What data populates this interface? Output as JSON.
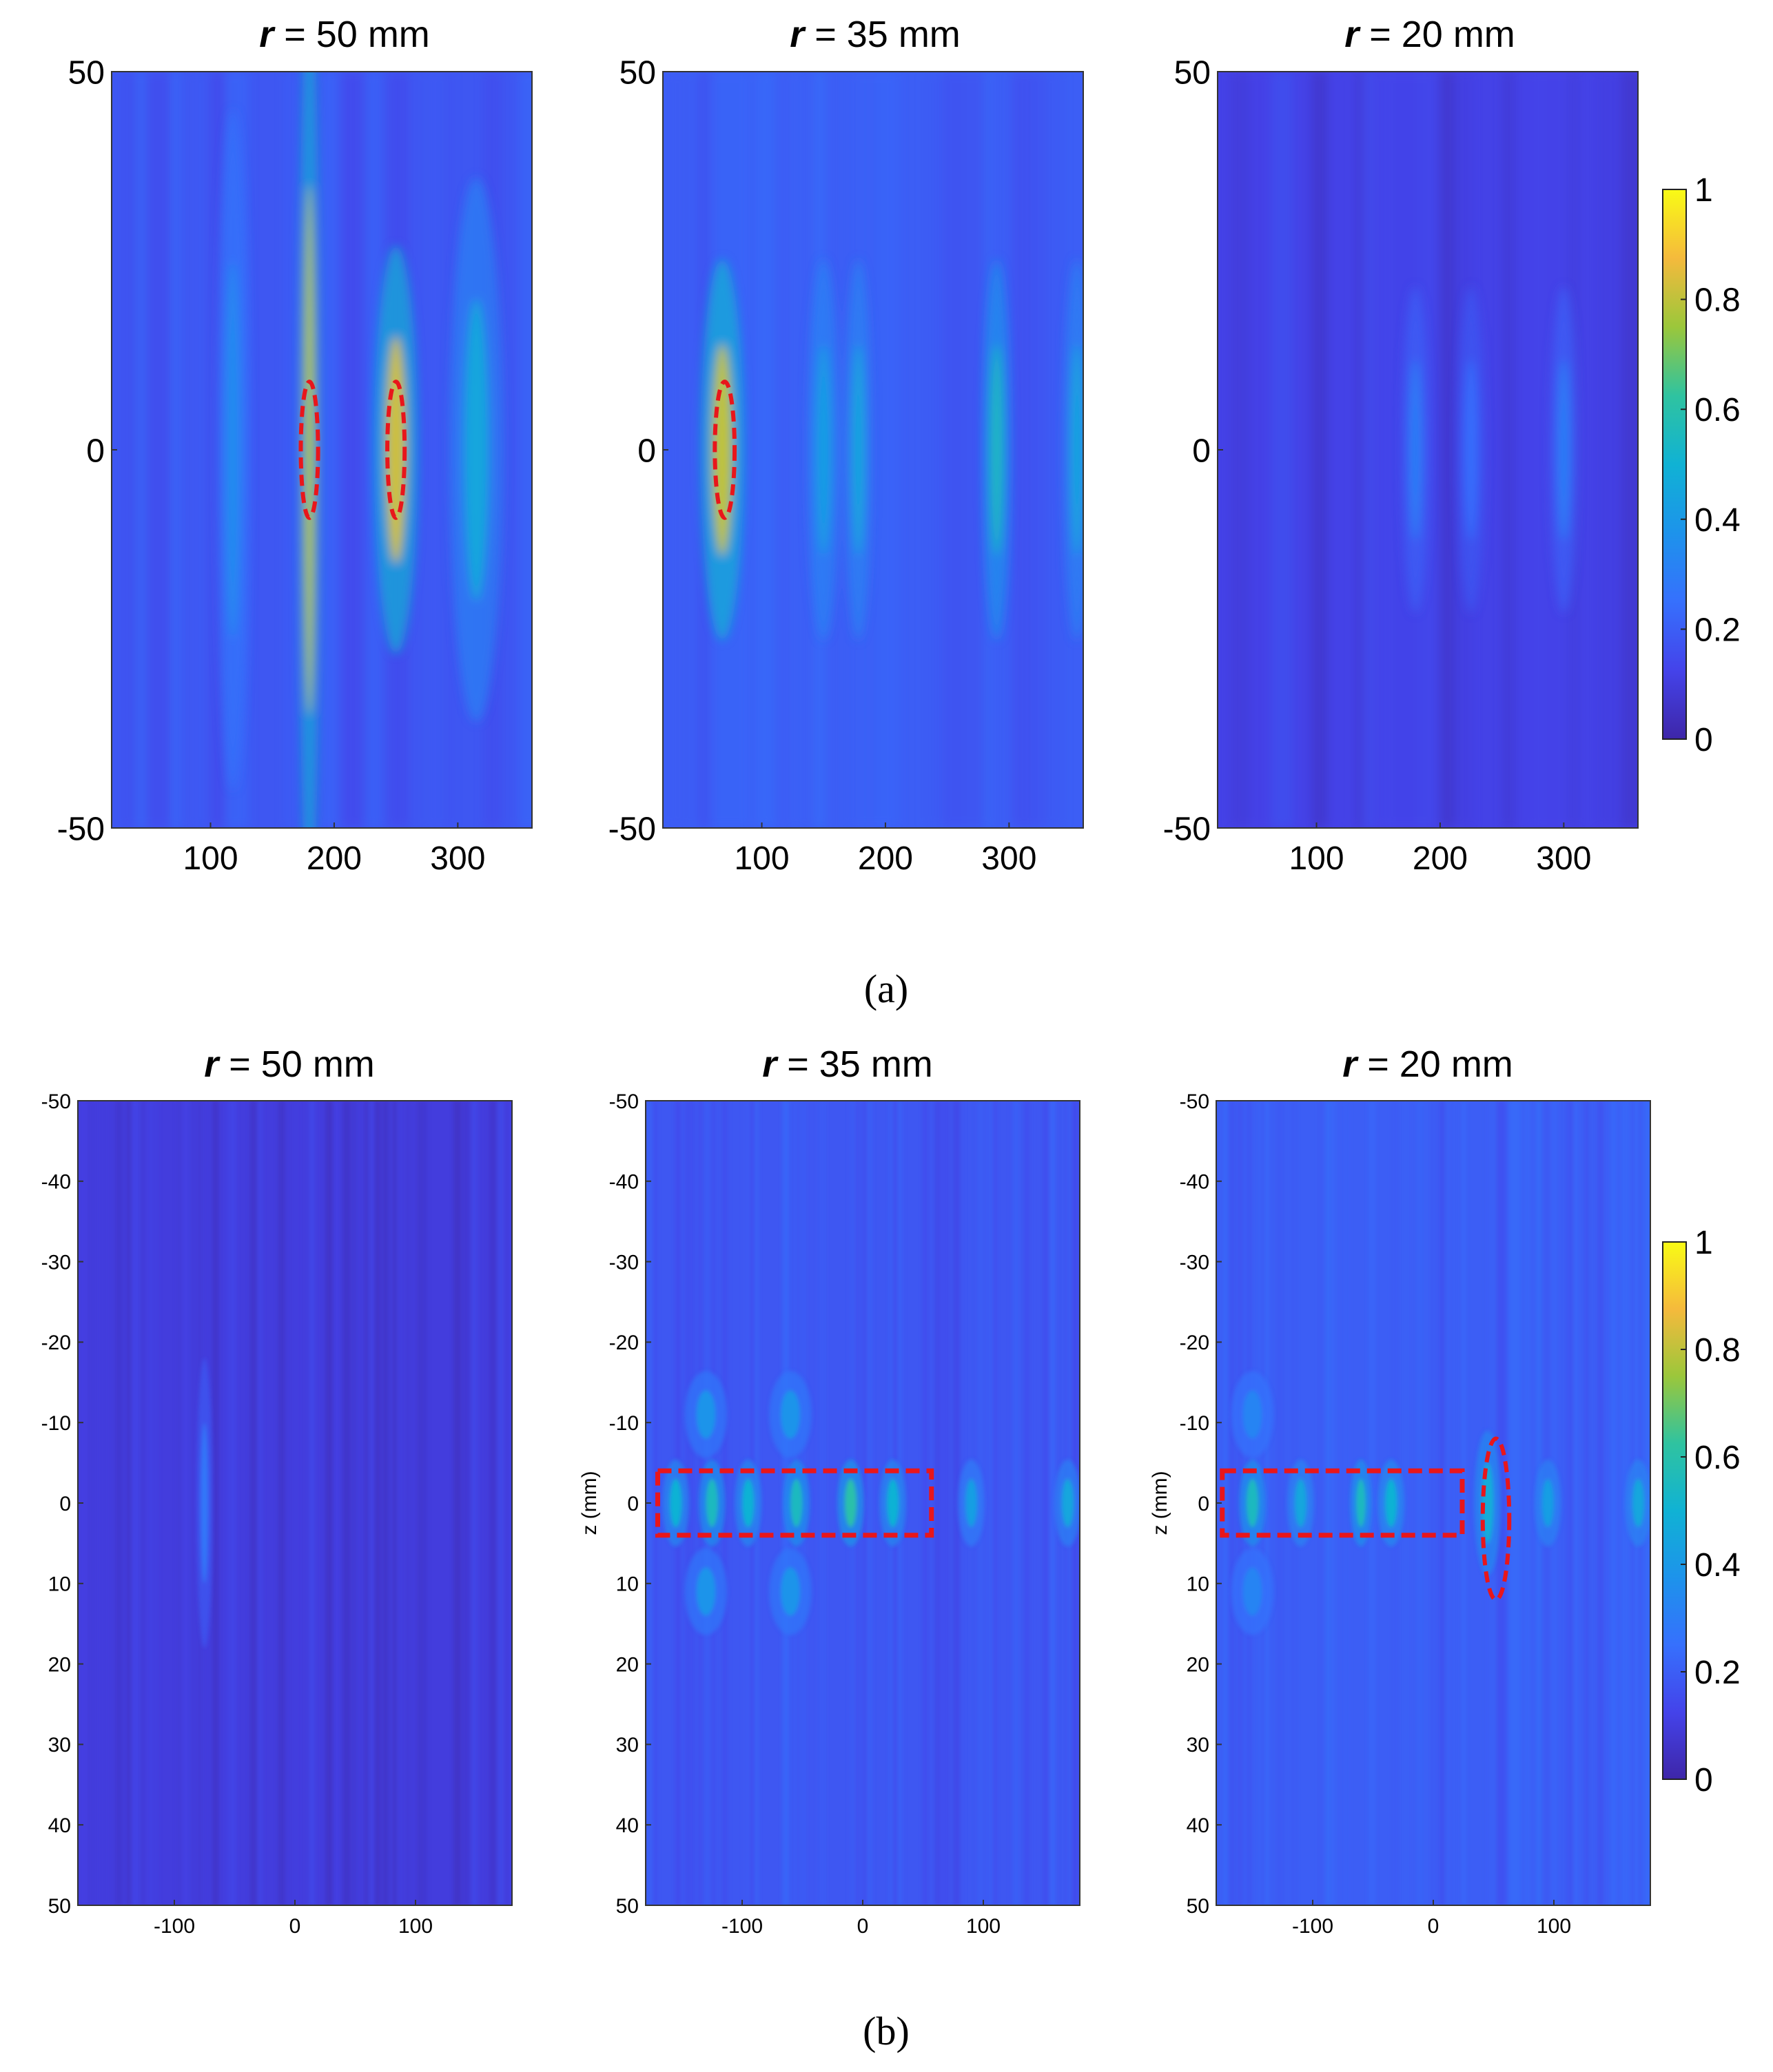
{
  "captions": {
    "a": "(a)",
    "b": "(b)"
  },
  "colors": {
    "annotation": "#e8161b",
    "frame": "#333333"
  },
  "chart_data": [
    {
      "type": "heatmap",
      "panel": "a1",
      "title_var": "r",
      "title_rest": " = 50 mm",
      "xlabel": "",
      "ylabel": "",
      "xlim": [
        20,
        360
      ],
      "ylim": [
        -50,
        50
      ],
      "y_reversed": false,
      "xticks": [
        100,
        200,
        300
      ],
      "yticks": [
        50,
        0,
        -50
      ],
      "xtick_labels": [
        "100",
        "200",
        "300"
      ],
      "ytick_labels": [
        "50",
        "0",
        "-50"
      ],
      "background": 0.18,
      "hotspots": [
        {
          "x": 180,
          "y": 0,
          "rx": 4,
          "ry": 35,
          "v": 0.78
        },
        {
          "x": 250,
          "y": 0,
          "rx": 8,
          "ry": 15,
          "v": 0.82
        },
        {
          "x": 315,
          "y": 0,
          "rx": 10,
          "ry": 20,
          "v": 0.45
        },
        {
          "x": 118,
          "y": 0,
          "rx": 6,
          "ry": 25,
          "v": 0.35
        }
      ],
      "annotations": [
        {
          "shape": "ellipse",
          "cx": 180,
          "cy": 0,
          "rx": 7,
          "ry": 9
        },
        {
          "shape": "ellipse",
          "cx": 250,
          "cy": 0,
          "rx": 7,
          "ry": 9
        }
      ]
    },
    {
      "type": "heatmap",
      "panel": "a2",
      "title_var": "r",
      "title_rest": " = 35 mm",
      "xlabel": "",
      "ylabel": "",
      "xlim": [
        20,
        360
      ],
      "ylim": [
        -50,
        50
      ],
      "y_reversed": false,
      "xticks": [
        100,
        200,
        300
      ],
      "yticks": [
        50,
        0,
        -50
      ],
      "xtick_labels": [
        "100",
        "200",
        "300"
      ],
      "ytick_labels": [
        "50",
        "0",
        "-50"
      ],
      "background": 0.2,
      "hotspots": [
        {
          "x": 68,
          "y": 0,
          "rx": 8,
          "ry": 14,
          "v": 0.8
        },
        {
          "x": 150,
          "y": 0,
          "rx": 6,
          "ry": 14,
          "v": 0.42
        },
        {
          "x": 178,
          "y": 0,
          "rx": 5,
          "ry": 14,
          "v": 0.45
        },
        {
          "x": 290,
          "y": 0,
          "rx": 5,
          "ry": 14,
          "v": 0.55
        },
        {
          "x": 355,
          "y": 0,
          "rx": 5,
          "ry": 14,
          "v": 0.45
        }
      ],
      "annotations": [
        {
          "shape": "ellipse",
          "cx": 70,
          "cy": 0,
          "rx": 8,
          "ry": 9
        }
      ]
    },
    {
      "type": "heatmap",
      "panel": "a3",
      "title_var": "r",
      "title_rest": " = 20 mm",
      "xlabel": "",
      "ylabel": "",
      "xlim": [
        20,
        360
      ],
      "ylim": [
        -50,
        50
      ],
      "y_reversed": false,
      "xticks": [
        100,
        200,
        300
      ],
      "yticks": [
        50,
        0,
        -50
      ],
      "xtick_labels": [
        "100",
        "200",
        "300"
      ],
      "ytick_labels": [
        "50",
        "0",
        "-50"
      ],
      "background": 0.12,
      "hotspots": [
        {
          "x": 180,
          "y": 0,
          "rx": 5,
          "ry": 12,
          "v": 0.3
        },
        {
          "x": 225,
          "y": 0,
          "rx": 5,
          "ry": 12,
          "v": 0.25
        },
        {
          "x": 300,
          "y": 0,
          "rx": 5,
          "ry": 12,
          "v": 0.3
        }
      ],
      "annotations": []
    },
    {
      "type": "heatmap",
      "panel": "b1",
      "title_var": "r",
      "title_rest": " = 50 mm",
      "xlabel": "",
      "ylabel": "",
      "xlim": [
        -180,
        180
      ],
      "ylim": [
        -50,
        50
      ],
      "y_reversed": true,
      "xticks": [
        -100,
        0,
        100
      ],
      "yticks": [
        -50,
        -40,
        -30,
        -20,
        -10,
        0,
        10,
        20,
        30,
        40,
        50
      ],
      "xtick_labels": [
        "-100",
        "0",
        "100"
      ],
      "ytick_labels": [
        "-50",
        "-40",
        "-30",
        "-20",
        "-10",
        "0",
        "10",
        "20",
        "30",
        "40",
        "50"
      ],
      "background": 0.1,
      "hotspots": [
        {
          "x": -75,
          "y": 0,
          "rx": 3,
          "ry": 10,
          "v": 0.28
        }
      ],
      "annotations": []
    },
    {
      "type": "heatmap",
      "panel": "b2",
      "title_var": "r",
      "title_rest": " = 35 mm",
      "xlabel": "",
      "ylabel": "z (mm)",
      "xlim": [
        -180,
        180
      ],
      "ylim": [
        -50,
        50
      ],
      "y_reversed": true,
      "xticks": [
        -100,
        0,
        100
      ],
      "yticks": [
        -50,
        -40,
        -30,
        -20,
        -10,
        0,
        10,
        20,
        30,
        40,
        50
      ],
      "xtick_labels": [
        "-100",
        "0",
        "100"
      ],
      "ytick_labels": [
        "-50",
        "-40",
        "-30",
        "-20",
        "-10",
        "0",
        "10",
        "20",
        "30",
        "40",
        "50"
      ],
      "background": 0.18,
      "hotspots": [
        {
          "x": -155,
          "y": 0,
          "rx": 5,
          "ry": 3,
          "v": 0.5
        },
        {
          "x": -125,
          "y": 0,
          "rx": 5,
          "ry": 3,
          "v": 0.55
        },
        {
          "x": -95,
          "y": 0,
          "rx": 5,
          "ry": 3,
          "v": 0.5
        },
        {
          "x": -55,
          "y": 0,
          "rx": 5,
          "ry": 3,
          "v": 0.55
        },
        {
          "x": -10,
          "y": 0,
          "rx": 5,
          "ry": 3,
          "v": 0.6
        },
        {
          "x": 25,
          "y": 0,
          "rx": 5,
          "ry": 3,
          "v": 0.5
        },
        {
          "x": 90,
          "y": 0,
          "rx": 5,
          "ry": 3,
          "v": 0.42
        },
        {
          "x": 170,
          "y": 0,
          "rx": 5,
          "ry": 3,
          "v": 0.45
        },
        {
          "x": -130,
          "y": -11,
          "rx": 8,
          "ry": 3,
          "v": 0.38
        },
        {
          "x": -60,
          "y": -11,
          "rx": 8,
          "ry": 3,
          "v": 0.38
        },
        {
          "x": -130,
          "y": 11,
          "rx": 8,
          "ry": 3,
          "v": 0.38
        },
        {
          "x": -60,
          "y": 11,
          "rx": 8,
          "ry": 3,
          "v": 0.38
        }
      ],
      "annotations": [
        {
          "shape": "rect",
          "x0": -170,
          "x1": 57,
          "y0": -4,
          "y1": 4
        }
      ]
    },
    {
      "type": "heatmap",
      "panel": "b3",
      "title_var": "r",
      "title_rest": " = 20 mm",
      "xlabel": "",
      "ylabel": "z (mm)",
      "xlim": [
        -180,
        180
      ],
      "ylim": [
        -50,
        50
      ],
      "y_reversed": true,
      "xticks": [
        -100,
        0,
        100
      ],
      "yticks": [
        -50,
        -40,
        -30,
        -20,
        -10,
        0,
        10,
        20,
        30,
        40,
        50
      ],
      "xtick_labels": [
        "-100",
        "0",
        "100"
      ],
      "ytick_labels": [
        "-50",
        "-40",
        "-30",
        "-20",
        "-10",
        "0",
        "10",
        "20",
        "30",
        "40",
        "50"
      ],
      "background": 0.2,
      "hotspots": [
        {
          "x": -150,
          "y": 0,
          "rx": 5,
          "ry": 3,
          "v": 0.55
        },
        {
          "x": -110,
          "y": 0,
          "rx": 5,
          "ry": 3,
          "v": 0.45
        },
        {
          "x": -60,
          "y": 0,
          "rx": 4,
          "ry": 3,
          "v": 0.55
        },
        {
          "x": -35,
          "y": 0,
          "rx": 5,
          "ry": 3,
          "v": 0.5
        },
        {
          "x": 45,
          "y": 0,
          "rx": 5,
          "ry": 5,
          "v": 0.48
        },
        {
          "x": 95,
          "y": 0,
          "rx": 5,
          "ry": 3,
          "v": 0.42
        },
        {
          "x": 170,
          "y": 0,
          "rx": 5,
          "ry": 3,
          "v": 0.45
        },
        {
          "x": -150,
          "y": -11,
          "rx": 8,
          "ry": 3,
          "v": 0.32
        },
        {
          "x": -150,
          "y": 11,
          "rx": 8,
          "ry": 3,
          "v": 0.32
        }
      ],
      "annotations": [
        {
          "shape": "rect",
          "x0": -175,
          "x1": 24,
          "y0": -4,
          "y1": 4
        },
        {
          "shape": "ellipse",
          "cx": 52,
          "cy": 2,
          "rx": 11,
          "ry": 10
        }
      ]
    },
    {
      "type": "colorbar",
      "panel": "cb-a",
      "range": [
        0,
        1
      ],
      "ticks": [
        0,
        0.2,
        0.4,
        0.6,
        0.8,
        1
      ],
      "tick_labels": [
        "0",
        "0.2",
        "0.4",
        "0.6",
        "0.8",
        "1"
      ]
    },
    {
      "type": "colorbar",
      "panel": "cb-b",
      "range": [
        0,
        1
      ],
      "ticks": [
        0,
        0.2,
        0.4,
        0.6,
        0.8,
        1
      ],
      "tick_labels": [
        "0",
        "0.2",
        "0.4",
        "0.6",
        "0.8",
        "1"
      ]
    }
  ]
}
